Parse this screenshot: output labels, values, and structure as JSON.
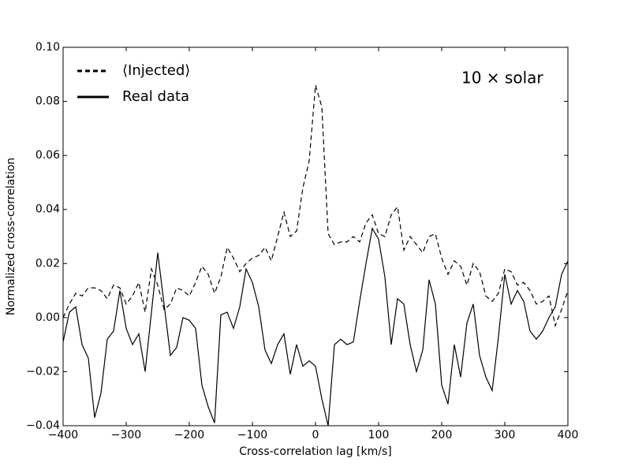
{
  "chart_data": {
    "type": "line",
    "xlabel": "Cross-correlation lag [km/s]",
    "ylabel": "Normalized cross-correlation",
    "annotation": "10 × solar",
    "legend": "upper left",
    "x": [
      -400,
      -390,
      -380,
      -370,
      -360,
      -350,
      -340,
      -330,
      -320,
      -310,
      -300,
      -290,
      -280,
      -270,
      -260,
      -250,
      -240,
      -230,
      -220,
      -210,
      -200,
      -190,
      -180,
      -170,
      -160,
      -150,
      -140,
      -130,
      -120,
      -110,
      -100,
      -90,
      -80,
      -70,
      -60,
      -50,
      -40,
      -30,
      -20,
      -10,
      0,
      10,
      20,
      30,
      40,
      50,
      60,
      70,
      80,
      90,
      100,
      110,
      120,
      130,
      140,
      150,
      160,
      170,
      180,
      190,
      200,
      210,
      220,
      230,
      240,
      250,
      260,
      270,
      280,
      290,
      300,
      310,
      320,
      330,
      340,
      350,
      360,
      370,
      380,
      390,
      400
    ],
    "series": [
      {
        "name": "⟨Injected⟩",
        "color": "#000000",
        "dash": "dashed",
        "values": [
          0.0,
          0.005,
          0.009,
          0.008,
          0.011,
          0.011,
          0.01,
          0.007,
          0.012,
          0.011,
          0.005,
          0.008,
          0.013,
          0.002,
          0.018,
          0.012,
          0.003,
          0.005,
          0.011,
          0.01,
          0.008,
          0.013,
          0.019,
          0.016,
          0.009,
          0.015,
          0.026,
          0.022,
          0.017,
          0.02,
          0.022,
          0.023,
          0.026,
          0.021,
          0.03,
          0.039,
          0.03,
          0.032,
          0.048,
          0.058,
          0.086,
          0.078,
          0.031,
          0.027,
          0.028,
          0.028,
          0.03,
          0.028,
          0.035,
          0.038,
          0.031,
          0.03,
          0.038,
          0.041,
          0.025,
          0.03,
          0.027,
          0.024,
          0.03,
          0.031,
          0.022,
          0.016,
          0.021,
          0.019,
          0.012,
          0.02,
          0.017,
          0.008,
          0.006,
          0.009,
          0.018,
          0.017,
          0.012,
          0.013,
          0.01,
          0.005,
          0.006,
          0.008,
          -0.003,
          0.003,
          0.01
        ]
      },
      {
        "name": "Real data",
        "color": "#000000",
        "dash": "solid",
        "values": [
          -0.009,
          0.002,
          0.004,
          -0.01,
          -0.015,
          -0.037,
          -0.028,
          -0.008,
          -0.005,
          0.01,
          -0.004,
          -0.01,
          -0.006,
          -0.02,
          0.002,
          0.024,
          0.005,
          -0.014,
          -0.011,
          0.0,
          -0.001,
          -0.004,
          -0.025,
          -0.033,
          -0.039,
          0.001,
          0.002,
          -0.004,
          0.004,
          0.018,
          0.013,
          0.004,
          -0.012,
          -0.017,
          -0.01,
          -0.006,
          -0.021,
          -0.01,
          -0.018,
          -0.016,
          -0.018,
          -0.03,
          -0.04,
          -0.01,
          -0.008,
          -0.01,
          -0.009,
          0.006,
          0.02,
          0.033,
          0.029,
          0.015,
          -0.01,
          0.007,
          0.005,
          -0.01,
          -0.02,
          -0.012,
          0.014,
          0.005,
          -0.025,
          -0.032,
          -0.01,
          -0.022,
          -0.002,
          0.005,
          -0.014,
          -0.022,
          -0.027,
          -0.007,
          0.016,
          0.005,
          0.01,
          0.006,
          -0.005,
          -0.008,
          -0.005,
          0.0,
          0.004,
          0.016,
          0.021
        ]
      }
    ],
    "xlim": [
      -400,
      400
    ],
    "xticks": [
      {
        "value": -400,
        "label": "−400"
      },
      {
        "value": -300,
        "label": "−300"
      },
      {
        "value": -200,
        "label": "−200"
      },
      {
        "value": -100,
        "label": "−100"
      },
      0,
      100,
      200,
      300,
      400
    ],
    "ylim": [
      -0.04,
      0.1
    ],
    "yticks": [
      {
        "value": -0.04,
        "label": "−0.04"
      },
      {
        "value": -0.02,
        "label": "−0.02"
      },
      {
        "value": 0,
        "label": "0.00"
      },
      {
        "value": 0.02,
        "label": "0.02"
      },
      {
        "value": 0.04,
        "label": "0.04"
      },
      {
        "value": 0.06,
        "label": "0.06"
      },
      {
        "value": 0.08,
        "label": "0.08"
      },
      {
        "value": 0.1,
        "label": "0.10"
      }
    ]
  }
}
